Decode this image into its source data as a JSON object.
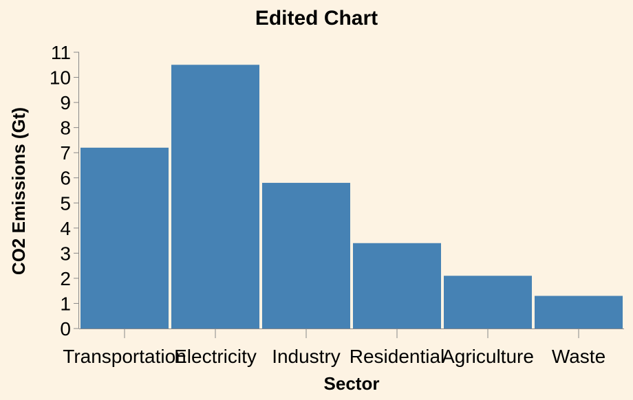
{
  "chart_data": {
    "type": "bar",
    "title": "Edited Chart",
    "xlabel": "Sector",
    "ylabel": "CO2 Emissions (Gt)",
    "categories": [
      "Transportation",
      "Electricity",
      "Industry",
      "Residential",
      "Agriculture",
      "Waste"
    ],
    "values": [
      7.2,
      10.5,
      5.8,
      3.4,
      2.1,
      1.3
    ],
    "ylim": [
      0,
      11
    ],
    "yticks": [
      0,
      1,
      2,
      3,
      4,
      5,
      6,
      7,
      8,
      9,
      10,
      11
    ],
    "grid": false,
    "colors": {
      "bar": "#4682b4",
      "background": "#fdf3e3"
    }
  }
}
